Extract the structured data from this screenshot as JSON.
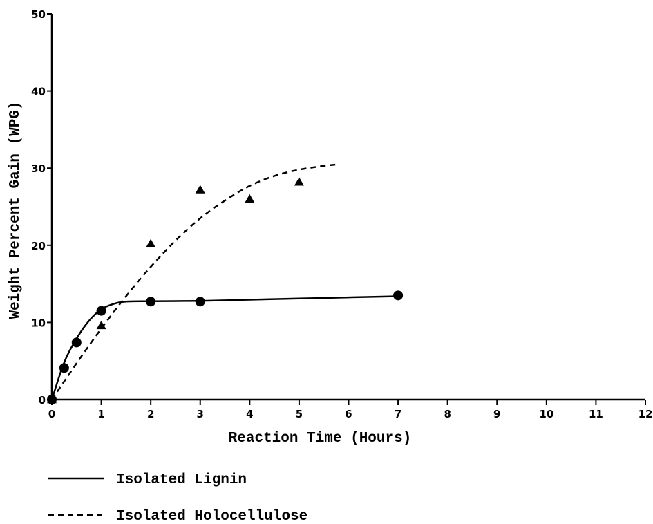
{
  "chart_data": {
    "type": "line",
    "title": "",
    "xlabel": "Reaction Time (Hours)",
    "ylabel": "Weight Percent Gain (WPG)",
    "xlim": [
      0,
      12
    ],
    "ylim": [
      0,
      50
    ],
    "x_ticks": [
      0,
      1,
      2,
      3,
      4,
      5,
      6,
      7,
      8,
      9,
      10,
      11,
      12
    ],
    "y_ticks": [
      0,
      10,
      20,
      30,
      40,
      50
    ],
    "grid": false,
    "legend_position": "bottom-left",
    "series": [
      {
        "name": "Isolated Lignin",
        "line_style": "solid",
        "marker": "circle",
        "points": [
          [
            0,
            0
          ],
          [
            0.25,
            4.1
          ],
          [
            0.5,
            7.4
          ],
          [
            1,
            11.5
          ],
          [
            2,
            12.7
          ],
          [
            3,
            12.7
          ],
          [
            7,
            13.5
          ]
        ],
        "fit_curve": [
          [
            0,
            0
          ],
          [
            0.25,
            4.8
          ],
          [
            0.5,
            7.9
          ],
          [
            0.75,
            10.2
          ],
          [
            1,
            11.7
          ],
          [
            1.25,
            12.4
          ],
          [
            1.5,
            12.7
          ],
          [
            2,
            12.75
          ],
          [
            3,
            12.8
          ],
          [
            4,
            12.95
          ],
          [
            5,
            13.1
          ],
          [
            6,
            13.25
          ],
          [
            7,
            13.4
          ]
        ]
      },
      {
        "name": "Isolated Holocellulose",
        "line_style": "dashed",
        "marker": "triangle",
        "points": [
          [
            0,
            0
          ],
          [
            1,
            9.6
          ],
          [
            2,
            20.2
          ],
          [
            3,
            27.2
          ],
          [
            4,
            26.0
          ],
          [
            5,
            28.2
          ]
        ],
        "fit_curve": [
          [
            0,
            0
          ],
          [
            0.5,
            4.7
          ],
          [
            1,
            9.2
          ],
          [
            1.5,
            13.4
          ],
          [
            2,
            17.2
          ],
          [
            2.5,
            20.6
          ],
          [
            3,
            23.5
          ],
          [
            3.5,
            25.8
          ],
          [
            4,
            27.7
          ],
          [
            4.5,
            29.0
          ],
          [
            5,
            29.8
          ],
          [
            5.5,
            30.3
          ],
          [
            5.8,
            30.5
          ]
        ]
      }
    ],
    "legend": [
      {
        "label": "Isolated Lignin",
        "line_style": "solid"
      },
      {
        "label": "Isolated Holocellulose",
        "line_style": "dashed"
      }
    ]
  }
}
